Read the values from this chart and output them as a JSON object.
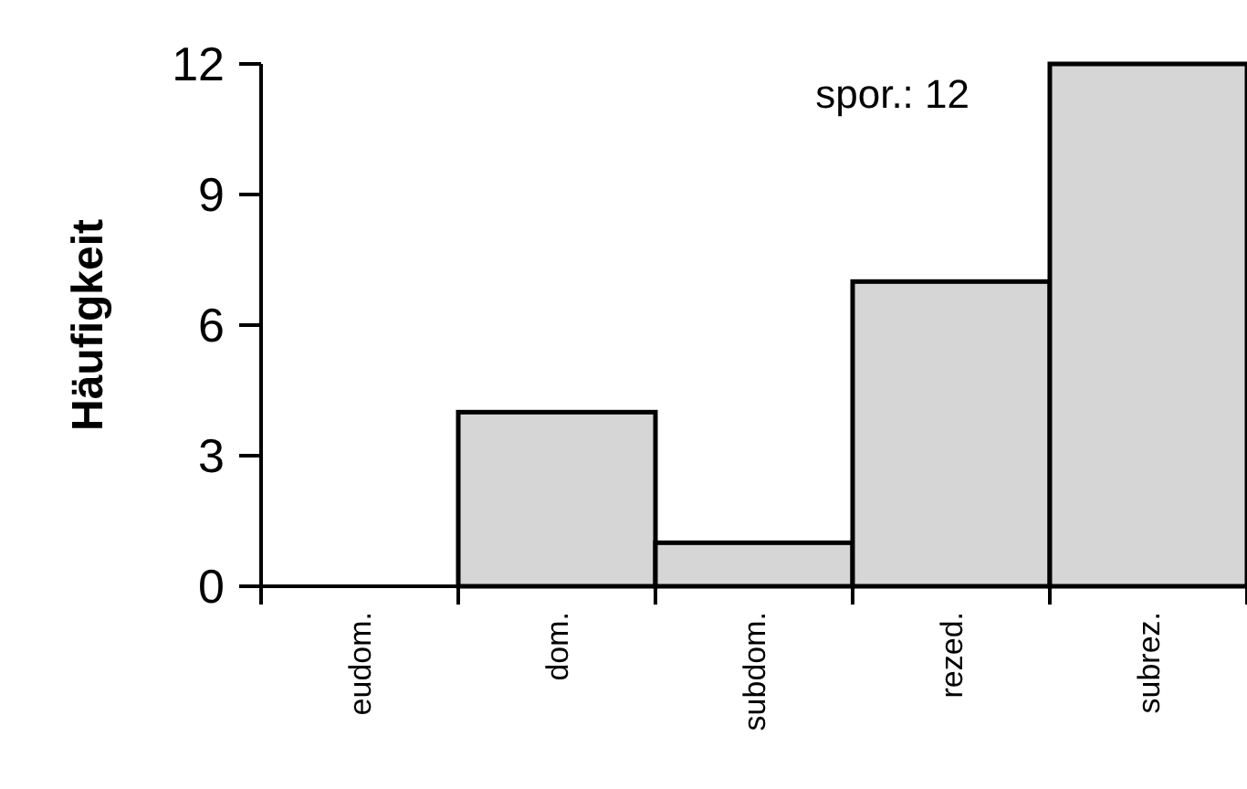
{
  "chart_data": {
    "type": "bar",
    "ylabel": "Häufigkeit",
    "categories": [
      "eudom.",
      "dom.",
      "subdom.",
      "rezed.",
      "subrez."
    ],
    "values": [
      0,
      4,
      1,
      7,
      12
    ],
    "color": "#d6d6d6",
    "ylim": [
      0,
      12
    ],
    "yticks": [
      0,
      3,
      6,
      9,
      12
    ],
    "grid": false,
    "annotations": [
      "spor.: 12"
    ]
  }
}
